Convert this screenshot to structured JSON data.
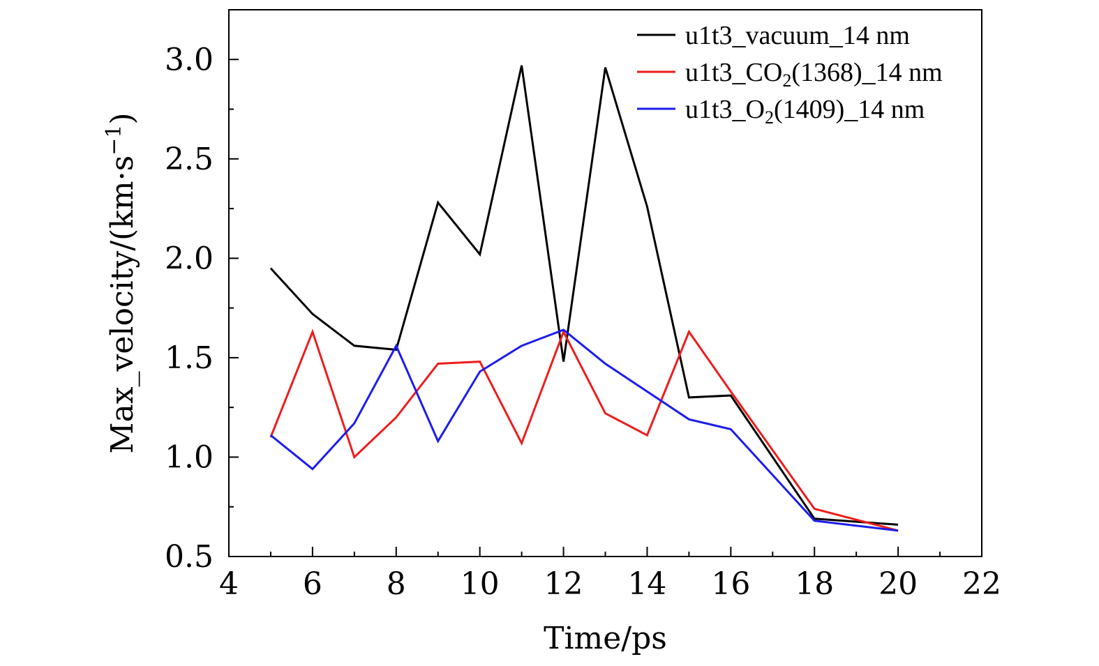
{
  "chart_data": {
    "type": "line",
    "xlabel": "Time/ps",
    "ylabel": "Max_velocity/(km·s",
    "ylabel_sup": "−1",
    "ylabel_end": ")",
    "xlim": [
      4,
      22
    ],
    "ylim": [
      0.5,
      3.25
    ],
    "xticks": [
      "4",
      "6",
      "8",
      "10",
      "12",
      "14",
      "16",
      "18",
      "20",
      "22"
    ],
    "yticks": [
      "0.5",
      "1.0",
      "1.5",
      "2.0",
      "2.5",
      "3.0"
    ],
    "grid": false,
    "legend_position": "top-right",
    "series": [
      {
        "name": "u1t3_vacuum_14 nm",
        "legend_main": "u1t3_vacuum_14 nm",
        "legend_sub": "",
        "legend_tail": "",
        "color": "#000000",
        "x": [
          5,
          6,
          7,
          8,
          9,
          10,
          11,
          12,
          13,
          14,
          15,
          16,
          18,
          20
        ],
        "y": [
          1.95,
          1.72,
          1.56,
          1.54,
          2.28,
          2.02,
          2.97,
          1.48,
          2.96,
          2.26,
          1.3,
          1.31,
          0.69,
          0.66
        ]
      },
      {
        "name": "u1t3_CO2(1368)_14 nm",
        "legend_main": "u1t3_CO",
        "legend_sub": "2",
        "legend_tail": "(1368)_14 nm",
        "color": "#ee1c1c",
        "x": [
          5,
          6,
          7,
          8,
          9,
          10,
          11,
          12,
          13,
          14,
          15,
          16,
          18,
          20
        ],
        "y": [
          1.1,
          1.63,
          1.0,
          1.2,
          1.47,
          1.48,
          1.07,
          1.63,
          1.22,
          1.11,
          1.63,
          1.33,
          0.74,
          0.63
        ]
      },
      {
        "name": "u1t3_O2(1409)_14 nm",
        "legend_main": "u1t3_O",
        "legend_sub": "2",
        "legend_tail": "(1409)_14 nm",
        "color": "#1c1cee",
        "x": [
          5,
          6,
          7,
          8,
          9,
          10,
          11,
          12,
          13,
          14,
          15,
          16,
          18,
          20
        ],
        "y": [
          1.11,
          0.94,
          1.17,
          1.56,
          1.08,
          1.43,
          1.56,
          1.64,
          1.47,
          1.33,
          1.19,
          1.14,
          0.68,
          0.63
        ]
      }
    ]
  }
}
